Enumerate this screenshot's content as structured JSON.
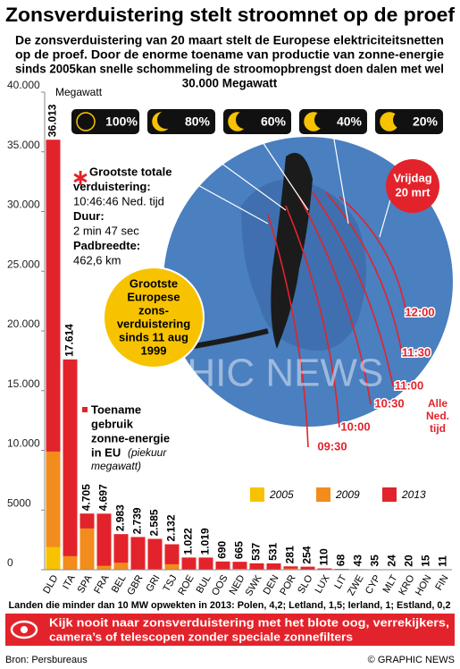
{
  "chart_data": {
    "type": "bar",
    "title": "Zonsverduistering stelt stroomnet op de proef",
    "subtitle": [
      "De zonsverduistering van 20 maart stelt de Europese elektriciteitsnetten",
      "op de proef. Door de enorme toename van productie van zonne-energie",
      "sinds 2005kan snelle schommeling de stroomopbrengst doen dalen met wel",
      "30.000 Megawatt"
    ],
    "y_label": "Megawatt",
    "categories": [
      "DLD",
      "ITA",
      "SPA",
      "FRA",
      "BEL",
      "GBR",
      "GRI",
      "TSJ",
      "ROE",
      "BUL",
      "OOS",
      "NED",
      "SWK",
      "DEN",
      "POR",
      "SLO",
      "LUX",
      "LIT",
      "ZWE",
      "CYP",
      "MLT",
      "KRO",
      "HON",
      "FIN"
    ],
    "series": [
      {
        "name": "2005",
        "color": "#f7c300",
        "values": [
          1900,
          0,
          50,
          20,
          0,
          10,
          0,
          0,
          0,
          0,
          20,
          50,
          0,
          0,
          0,
          0,
          20,
          0,
          0,
          0,
          0,
          0,
          0,
          0
        ]
      },
      {
        "name": "2009",
        "color": "#f28c1c",
        "values": [
          9900,
          1140,
          3460,
          330,
          590,
          30,
          50,
          460,
          0,
          0,
          50,
          70,
          0,
          5,
          100,
          10,
          30,
          0,
          0,
          0,
          0,
          0,
          0,
          0
        ]
      },
      {
        "name": "2013",
        "color": "#e3232b",
        "values": [
          36013,
          17614,
          4705,
          4697,
          2983,
          2739,
          2585,
          2132,
          1022,
          1019,
          690,
          665,
          537,
          531,
          281,
          254,
          110,
          68,
          43,
          35,
          24,
          20,
          15,
          11
        ],
        "value_labels": [
          "36.013",
          "17.614",
          "4.705",
          "4.697",
          "2.983",
          "2.739",
          "2.585",
          "2.132",
          "1.022",
          "1.019",
          "690",
          "665",
          "537",
          "531",
          "281",
          "254",
          "110",
          "68",
          "43",
          "35",
          "24",
          "20",
          "15",
          "11"
        ]
      }
    ],
    "ylim": [
      0,
      40000
    ],
    "yticks": [
      0,
      5000,
      {
        "value": 10000,
        "label": "10.000"
      },
      {
        "value": 15000,
        "label": "15.000"
      },
      {
        "value": 20000,
        "label": "20.000"
      },
      {
        "value": 25000,
        "label": "25.000"
      },
      {
        "value": 30000,
        "label": "30.000"
      },
      {
        "value": 35000,
        "label": "35.000"
      },
      {
        "value": 40000,
        "label": "40.000"
      }
    ],
    "phases": [
      "100%",
      "80%",
      "60%",
      "40%",
      "20%"
    ],
    "times": [
      "12:00",
      "11:30",
      "11:00",
      "10:30",
      "10:00",
      "09:30"
    ],
    "date": [
      "Vrijdag",
      "20 mrt"
    ],
    "time_note": [
      "Alle",
      "Ned.",
      "tijd"
    ],
    "totality": {
      "head": [
        "Grootste totale",
        "verduistering:"
      ],
      "time": "10:46:46 Ned. tijd",
      "duration_head": "Duur:",
      "duration": "2 min 47 sec",
      "width_head": "Padbreedte:",
      "width": "462,6 km"
    },
    "largest": [
      "Grootste",
      "Europese",
      "zons-",
      "verduistering",
      "sinds 11 aug",
      "1999"
    ],
    "increase": [
      "Toename",
      "gebruik",
      "zonne-energie",
      "in EU"
    ],
    "increase_note": [
      "(piekuur",
      "megawatt)"
    ],
    "watermark": [
      "GRAPHIC NEWS"
    ],
    "footnote": "Landen die minder dan 10 MW opwekten in 2013: Polen, 4,2; Letland, 1,5; Ierland, 1; Estland, 0,2",
    "warning": [
      "Kijk nooit naar zonsverduistering met het blote oog, verrekijkers,",
      "camera’s of telescopen zonder speciale zonnefilters"
    ],
    "source": "Bron: Persbureaus",
    "credit": "© GRAPHIC NEWS"
  }
}
